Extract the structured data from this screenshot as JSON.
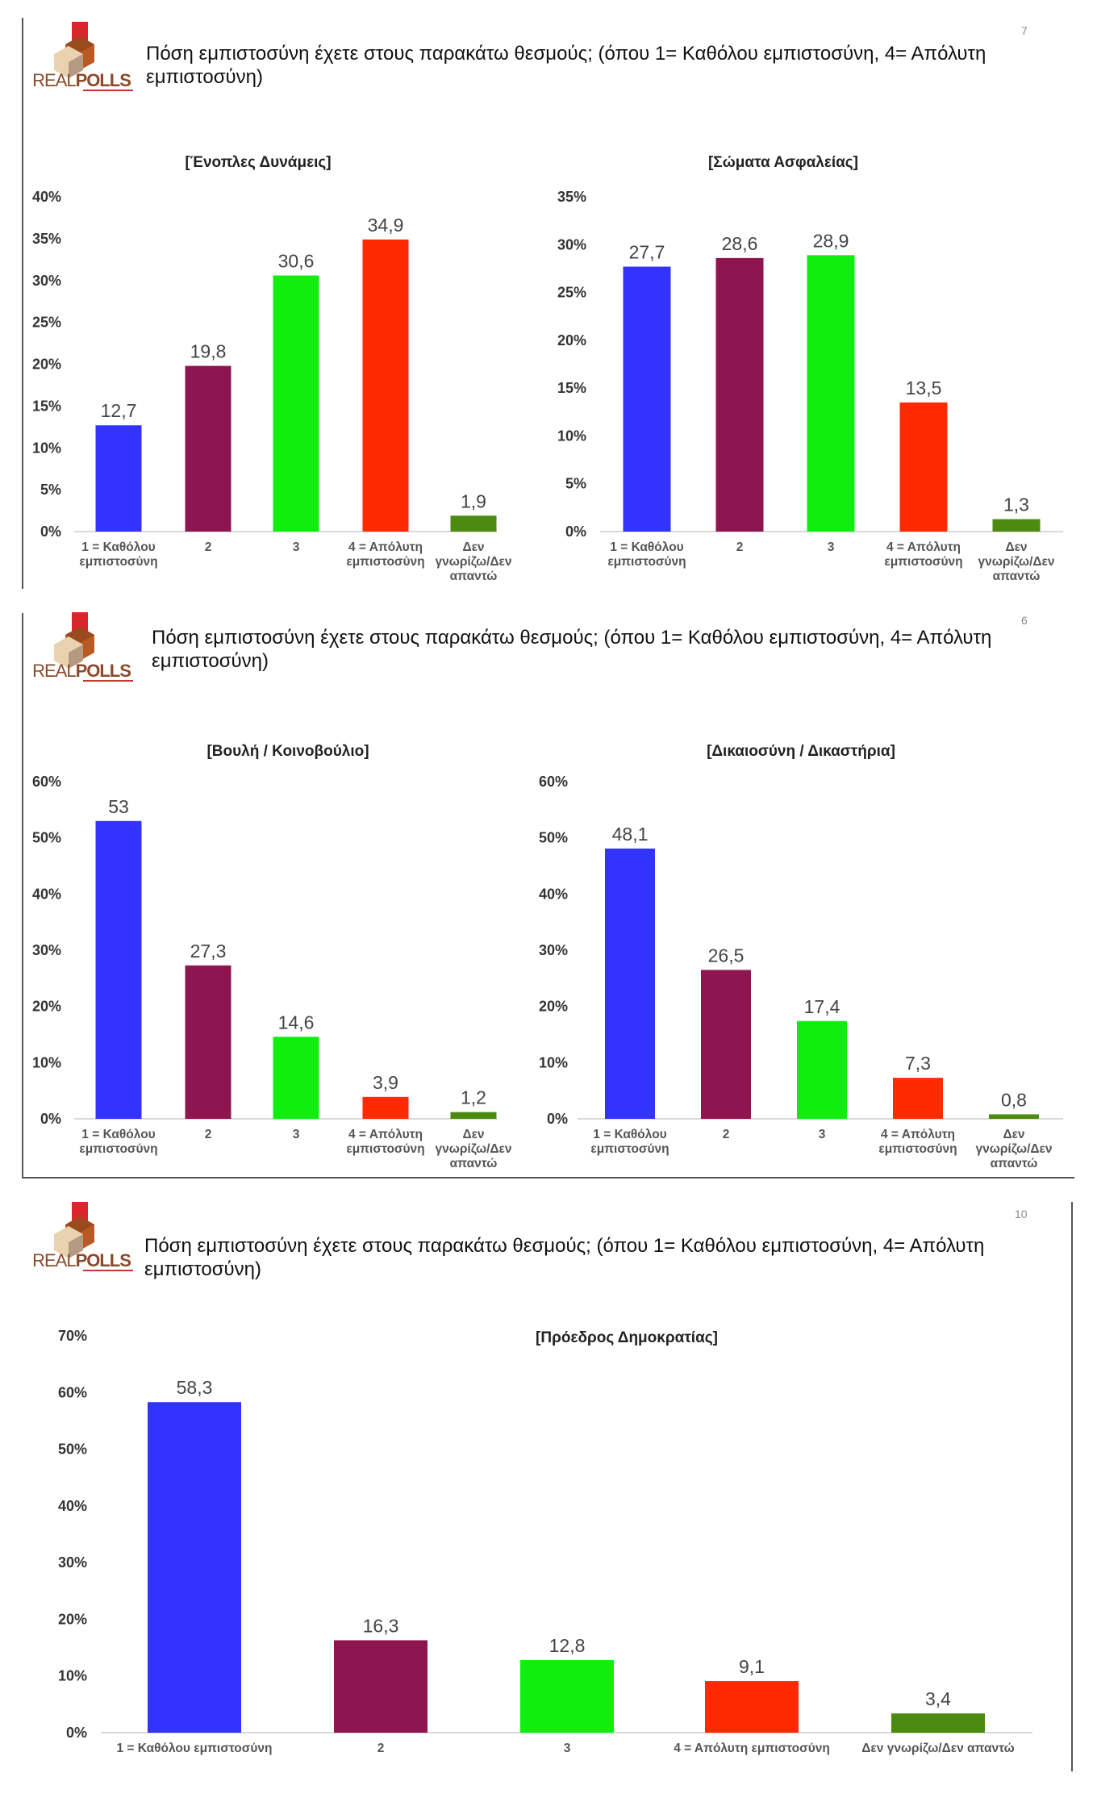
{
  "logo_text": "REALPOLLS",
  "question": "Πόση εμπιστοσύνη έχετε στους παρακάτω θεσμούς; (όπου 1= Καθόλου εμπιστοσύνη, 4= Απόλυτη εμπιστοσύνη)",
  "pages": [
    {
      "number": "7"
    },
    {
      "number": "6"
    },
    {
      "number": "10"
    }
  ],
  "colors": {
    "cat1": "#3333FF",
    "cat2": "#8E1550",
    "cat3": "#10EE10",
    "cat4": "#FF2A00",
    "cat5": "#4C8A10"
  },
  "chart_data": [
    {
      "type": "bar",
      "title": "[Ένοπλες Δυνάμεις]",
      "categories": [
        [
          "1 = Καθόλου",
          "εμπιστοσύνη"
        ],
        [
          "2"
        ],
        [
          "3"
        ],
        [
          "4 = Απόλυτη",
          "εμπιστοσύνη"
        ],
        [
          "Δεν",
          "γνωρίζω/Δεν",
          "απαντώ"
        ]
      ],
      "values": [
        12.7,
        19.8,
        30.6,
        34.9,
        1.9
      ],
      "value_labels": [
        "12,7",
        "19,8",
        "30,6",
        "34,9",
        "1,9"
      ],
      "ylim": [
        0,
        40
      ],
      "yticks": [
        "0%",
        "5%",
        "10%",
        "15%",
        "20%",
        "25%",
        "30%",
        "35%",
        "40%"
      ],
      "grid": false
    },
    {
      "type": "bar",
      "title": "[Σώματα Ασφαλείας]",
      "categories": [
        [
          "1 = Καθόλου",
          "εμπιστοσύνη"
        ],
        [
          "2"
        ],
        [
          "3"
        ],
        [
          "4 = Απόλυτη",
          "εμπιστοσύνη"
        ],
        [
          "Δεν",
          "γνωρίζω/Δεν",
          "απαντώ"
        ]
      ],
      "values": [
        27.7,
        28.6,
        28.9,
        13.5,
        1.3
      ],
      "value_labels": [
        "27,7",
        "28,6",
        "28,9",
        "13,5",
        "1,3"
      ],
      "ylim": [
        0,
        35
      ],
      "yticks": [
        "0%",
        "5%",
        "10%",
        "15%",
        "20%",
        "25%",
        "30%",
        "35%"
      ],
      "grid": false
    },
    {
      "type": "bar",
      "title": "[Βουλή / Κοινοβούλιο]",
      "categories": [
        [
          "1 = Καθόλου",
          "εμπιστοσύνη"
        ],
        [
          "2"
        ],
        [
          "3"
        ],
        [
          "4 = Απόλυτη",
          "εμπιστοσύνη"
        ],
        [
          "Δεν",
          "γνωρίζω/Δεν",
          "απαντώ"
        ]
      ],
      "values": [
        53,
        27.3,
        14.6,
        3.9,
        1.2
      ],
      "value_labels": [
        "53",
        "27,3",
        "14,6",
        "3,9",
        "1,2"
      ],
      "ylim": [
        0,
        60
      ],
      "yticks": [
        "0%",
        "10%",
        "20%",
        "30%",
        "40%",
        "50%",
        "60%"
      ],
      "grid": false
    },
    {
      "type": "bar",
      "title": "[Δικαιοσύνη / Δικαστήρια]",
      "categories": [
        [
          "1 = Καθόλου",
          "εμπιστοσύνη"
        ],
        [
          "2"
        ],
        [
          "3"
        ],
        [
          "4 = Απόλυτη",
          "εμπιστοσύνη"
        ],
        [
          "Δεν",
          "γνωρίζω/Δεν",
          "απαντώ"
        ]
      ],
      "values": [
        48.1,
        26.5,
        17.4,
        7.3,
        0.8
      ],
      "value_labels": [
        "48,1",
        "26,5",
        "17,4",
        "7,3",
        "0,8"
      ],
      "ylim": [
        0,
        60
      ],
      "yticks": [
        "0%",
        "10%",
        "20%",
        "30%",
        "40%",
        "50%",
        "60%"
      ],
      "grid": false
    },
    {
      "type": "bar",
      "title": "[Πρόεδρος Δημοκρατίας]",
      "categories": [
        [
          "1 = Καθόλου εμπιστοσύνη"
        ],
        [
          "2"
        ],
        [
          "3"
        ],
        [
          "4 = Απόλυτη εμπιστοσύνη"
        ],
        [
          "Δεν γνωρίζω/Δεν απαντώ"
        ]
      ],
      "values": [
        58.3,
        16.3,
        12.8,
        9.1,
        3.4
      ],
      "value_labels": [
        "58,3",
        "16,3",
        "12,8",
        "9,1",
        "3,4"
      ],
      "ylim": [
        0,
        70
      ],
      "yticks": [
        "0%",
        "10%",
        "20%",
        "30%",
        "40%",
        "50%",
        "60%",
        "70%"
      ],
      "grid": false
    }
  ]
}
